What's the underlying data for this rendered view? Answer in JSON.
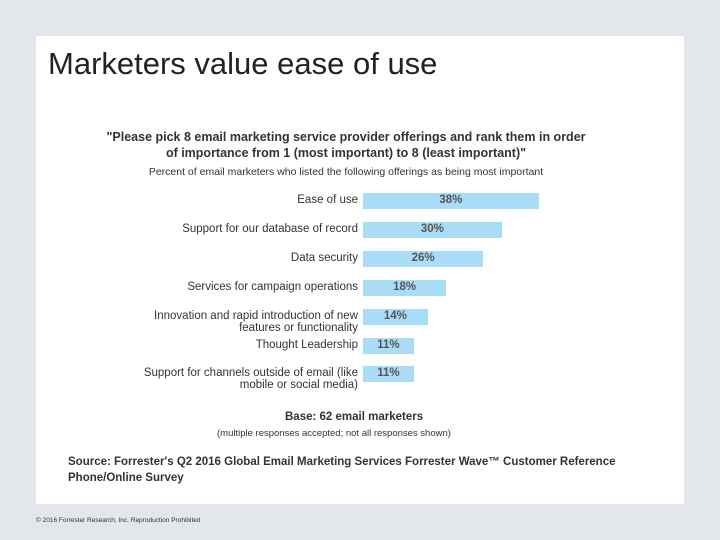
{
  "slide": {
    "title": "Marketers value ease of use",
    "footer": "© 2016 Forrester Research, Inc. Reproduction Prohibited"
  },
  "chart_data": {
    "type": "bar",
    "orientation": "horizontal",
    "title": "\"Please pick 8 email marketing service provider offerings and rank them in order of importance from 1 (most important) to 8 (least important)\"",
    "subtitle": "Percent of email marketers who listed the following offerings as being most important",
    "categories": [
      "Ease of use",
      "Support for our database of record",
      "Data security",
      "Services for campaign operations",
      "Innovation and rapid introduction of new features or functionality",
      "Thought Leadership",
      "Support for channels outside of email (like mobile or social media)"
    ],
    "values": [
      38,
      30,
      26,
      18,
      14,
      11,
      11
    ],
    "value_labels": [
      "38%",
      "30%",
      "26%",
      "18%",
      "14%",
      "11%",
      "11%"
    ],
    "bar_color": "#a9dcf6",
    "xlim": [
      0,
      40
    ],
    "grid": false,
    "base": "Base: 62 email marketers",
    "base_note": "(multiple responses accepted; not all responses shown)",
    "source": "Source: Forrester's Q2 2016 Global Email Marketing Services Forrester Wave™ Customer Reference Phone/Online Survey"
  }
}
